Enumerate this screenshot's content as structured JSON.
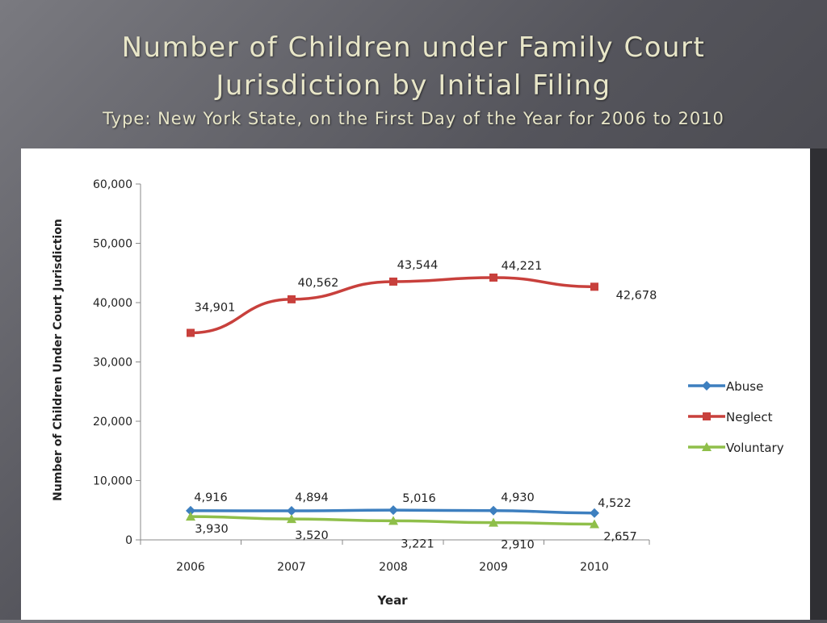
{
  "slide": {
    "title_line1": "Number of Children under Family Court",
    "title_line2": "Jurisdiction by Initial Filing",
    "title_line3": "Type: New York State, on the First Day of the Year for 2006 to 2010"
  },
  "chart_data": {
    "type": "line",
    "categories": [
      "2006",
      "2007",
      "2008",
      "2009",
      "2010"
    ],
    "xlabel": "Year",
    "ylabel": "Number of Children Under Court Jurisdiction",
    "ylim": [
      0,
      60000
    ],
    "yticks": [
      0,
      10000,
      20000,
      30000,
      40000,
      50000,
      60000
    ],
    "ytick_labels": [
      "0",
      "10,000",
      "20,000",
      "30,000",
      "40,000",
      "50,000",
      "60,000"
    ],
    "legend_position": "right",
    "grid": false,
    "series": [
      {
        "name": "Abuse",
        "color": "#3d7fbf",
        "marker": "diamond",
        "values": [
          4916,
          4894,
          5016,
          4930,
          4522
        ],
        "labels": [
          "4,916",
          "4,894",
          "5,016",
          "4,930",
          "4,522"
        ]
      },
      {
        "name": "Neglect",
        "color": "#c8403c",
        "marker": "square",
        "values": [
          34901,
          40562,
          43544,
          44221,
          42678
        ],
        "labels": [
          "34,901",
          "40,562",
          "43,544",
          "44,221",
          "42,678"
        ]
      },
      {
        "name": "Voluntary",
        "color": "#8fbf4a",
        "marker": "triangle",
        "values": [
          3930,
          3520,
          3221,
          2910,
          2657
        ],
        "labels": [
          "3,930",
          "3,520",
          "3,221",
          "2,910",
          "2,657"
        ]
      }
    ]
  }
}
